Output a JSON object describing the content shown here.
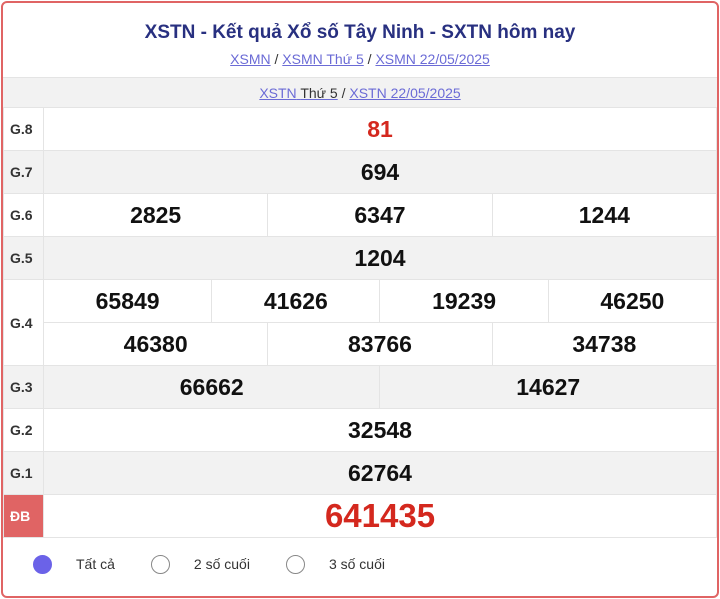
{
  "title": "XSTN - Kết quả Xổ số Tây Ninh - SXTN hôm nay",
  "breadcrumb": [
    "XSMN",
    "XSMN Thứ 5",
    "XSMN 22/05/2025"
  ],
  "sub_links": {
    "link1": "XSTN",
    "link1_plain": "Thứ 5",
    "link2": "XSTN 22/05/2025"
  },
  "prizes": {
    "g8": {
      "label": "G.8",
      "values": [
        "81"
      ]
    },
    "g7": {
      "label": "G.7",
      "values": [
        "694"
      ]
    },
    "g6": {
      "label": "G.6",
      "values": [
        "2825",
        "6347",
        "1244"
      ]
    },
    "g5": {
      "label": "G.5",
      "values": [
        "1204"
      ]
    },
    "g4": {
      "label": "G.4",
      "values": [
        "65849",
        "41626",
        "19239",
        "46250",
        "46380",
        "83766",
        "34738"
      ]
    },
    "g3": {
      "label": "G.3",
      "values": [
        "66662",
        "14627"
      ]
    },
    "g2": {
      "label": "G.2",
      "values": [
        "32548"
      ]
    },
    "g1": {
      "label": "G.1",
      "values": [
        "62764"
      ]
    },
    "db": {
      "label": "ĐB",
      "values": [
        "641435"
      ]
    }
  },
  "filters": [
    {
      "label": "Tất cả",
      "selected": true
    },
    {
      "label": "2 số cuối",
      "selected": false
    },
    {
      "label": "3 số cuối",
      "selected": false
    }
  ],
  "colors": {
    "accent": "#e06464",
    "prize_red": "#d4281e",
    "title": "#283080",
    "link": "#6b6bd6"
  }
}
